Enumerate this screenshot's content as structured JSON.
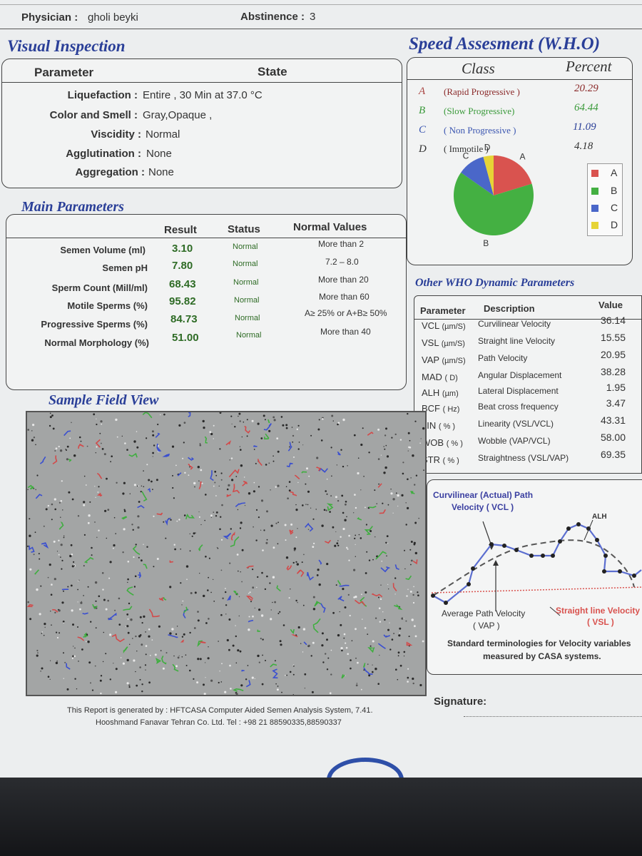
{
  "header": {
    "physician_label": "Physician :",
    "physician_value": "gholi beyki",
    "abstinence_label": "Abstinence :",
    "abstinence_value": "3"
  },
  "visual_inspection": {
    "title": "Visual Inspection",
    "col_parameter": "Parameter",
    "col_state": "State",
    "rows": [
      {
        "label": "Liquefaction :",
        "value": "Entire , 30  Min at  37.0 °C"
      },
      {
        "label": "Color and Smell :",
        "value": "Gray,Opaque  ,"
      },
      {
        "label": "Viscidity :",
        "value": "Normal"
      },
      {
        "label": "Agglutination :",
        "value": "None"
      },
      {
        "label": "Aggregation :",
        "value": "None"
      }
    ]
  },
  "main_parameters": {
    "title": "Main Parameters",
    "col_result": "Result",
    "col_status": "Status",
    "col_normal": "Normal Values",
    "rows": [
      {
        "label": "Semen Volume (ml)",
        "result": "3.10",
        "status": "Normal",
        "normal": "More than  2"
      },
      {
        "label": "Semen pH",
        "result": "7.80",
        "status": "Normal",
        "normal": "7.2 – 8.0"
      },
      {
        "label": "Sperm Count (Mill/ml)",
        "result": "68.43",
        "status": "Normal",
        "normal": "More than  20"
      },
      {
        "label": "Motile Sperms (%)",
        "result": "95.82",
        "status": "Normal",
        "normal": "More than 60"
      },
      {
        "label": "Progressive Sperms (%)",
        "result": "84.73",
        "status": "Normal",
        "normal": "A≥ 25% or A+B≥ 50%"
      },
      {
        "label": "Normal Morphology (%)",
        "result": "51.00",
        "status": "Normal",
        "normal": "More than  40"
      }
    ]
  },
  "speed": {
    "title": "Speed Assesment (W.H.O)",
    "col_class": "Class",
    "col_percent": "Percent",
    "rows": [
      {
        "letter": "A",
        "name": "(Rapid Progressive )",
        "percent": "20.29",
        "color": "#d9534f"
      },
      {
        "letter": "B",
        "name": "(Slow Progressive)",
        "percent": "64.44",
        "color": "#44b042"
      },
      {
        "letter": "C",
        "name": "( Non Progressive )",
        "percent": "11.09",
        "color": "#4a67c9"
      },
      {
        "letter": "D",
        "name": "( Immotile )",
        "percent": "4.18",
        "color": "#e6d436"
      }
    ]
  },
  "chart_data": {
    "type": "pie",
    "categories": [
      "A",
      "B",
      "C",
      "D"
    ],
    "values": [
      20.29,
      64.44,
      11.09,
      4.18
    ],
    "colors": [
      "#d9534f",
      "#44b042",
      "#4a67c9",
      "#e6d436"
    ],
    "legend": [
      "A",
      "B",
      "C",
      "D"
    ],
    "legend_position": "right"
  },
  "dynamic": {
    "title": "Other WHO Dynamic Parameters",
    "col_parameter": "Parameter",
    "col_description": "Description",
    "col_value": "Value",
    "rows": [
      {
        "abbr": "VCL",
        "unit": "(µm/S)",
        "desc": "Curvilinear Velocity",
        "value": "36.14"
      },
      {
        "abbr": "VSL",
        "unit": "(µm/S)",
        "desc": "Straight line Velocity",
        "value": "15.55"
      },
      {
        "abbr": "VAP",
        "unit": "(µm/S)",
        "desc": "Path Velocity",
        "value": "20.95"
      },
      {
        "abbr": "MAD",
        "unit": "( D)",
        "desc": "Angular Displacement",
        "value": "38.28"
      },
      {
        "abbr": "ALH",
        "unit": "(µm)",
        "desc": "Lateral Displacement",
        "value": "1.95"
      },
      {
        "abbr": "BCF",
        "unit": "( Hz)",
        "desc": "Beat cross frequency",
        "value": "3.47"
      },
      {
        "abbr": "LIN",
        "unit": "( % )",
        "desc": "Linearity (VSL/VCL)",
        "value": "43.31"
      },
      {
        "abbr": "WOB",
        "unit": "( % )",
        "desc": "Wobble  (VAP/VCL)",
        "value": "58.00"
      },
      {
        "abbr": "STR",
        "unit": "( % )",
        "desc": "Straightness (VSL/VAP)",
        "value": "69.35"
      }
    ]
  },
  "sample_field": {
    "title": "Sample Field View"
  },
  "velocity_diagram": {
    "vcl_line1": "Curvilinear (Actual) Path",
    "vcl_line2": "Velocity ( VCL )",
    "alh": "ALH",
    "vap_line1": "Average Path Velocity",
    "vap_line2": "( VAP )",
    "vsl_line1": "Straight line Velocity",
    "vsl_line2": "( VSL )",
    "caption_line1": "Standard terminologies for Velocity variables",
    "caption_line2": "measured by CASA systems."
  },
  "footer": {
    "line1": "This Report is generated by : HFTCASA Computer Aided Semen Analysis System, 7.41.",
    "line2": "Hooshmand Fanavar Tehran Co. Ltd.    Tel : +98 21 88590335,88590337",
    "signature": "Signature:"
  }
}
